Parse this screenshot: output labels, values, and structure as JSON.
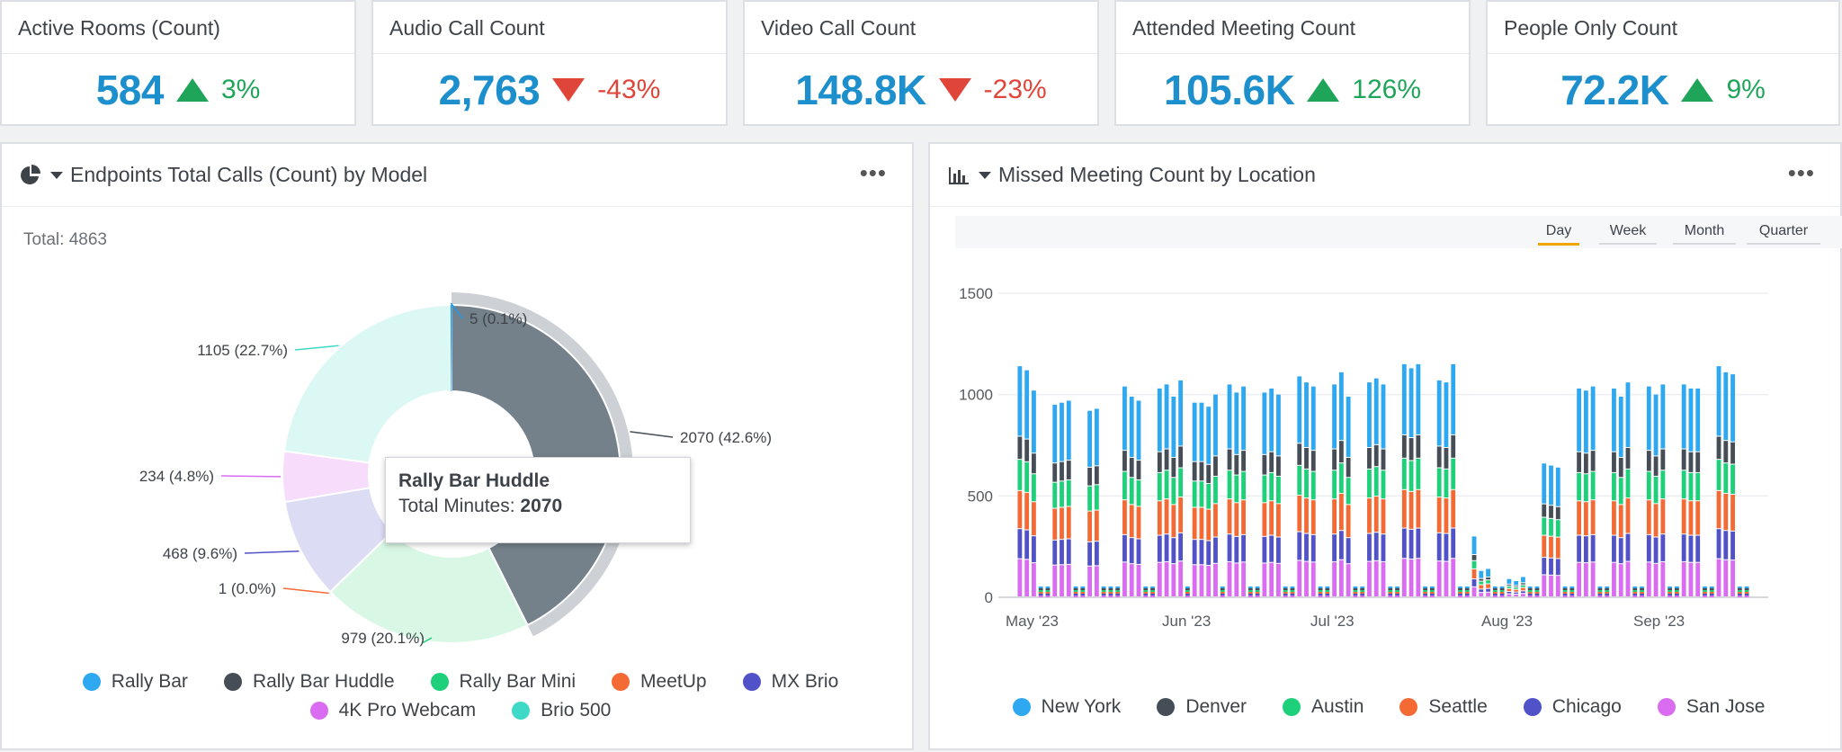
{
  "kpis": [
    {
      "title": "Active Rooms (Count)",
      "value": "584",
      "delta": "3%",
      "direction": "up"
    },
    {
      "title": "Audio Call Count",
      "value": "2,763",
      "delta": "-43%",
      "direction": "down"
    },
    {
      "title": "Video Call Count",
      "value": "148.8K",
      "delta": "-23%",
      "direction": "down"
    },
    {
      "title": "Attended Meeting Count",
      "value": "105.6K",
      "delta": "126%",
      "direction": "up"
    },
    {
      "title": "People Only Count",
      "value": "72.2K",
      "delta": "9%",
      "direction": "up"
    }
  ],
  "pie_panel": {
    "title": "Endpoints Total Calls (Count) by Model",
    "icon": "pie-chart-icon",
    "more": "•••",
    "total_label": "Total: 4863",
    "tooltip": {
      "title": "Rally Bar Huddle",
      "label": "Total Minutes: ",
      "value": "2070"
    }
  },
  "bar_panel": {
    "title": "Missed Meeting Count by Location",
    "icon": "bar-chart-icon",
    "more": "•••",
    "tabs": [
      "Day",
      "Week",
      "Month",
      "Quarter"
    ],
    "active_tab": "Day"
  },
  "chart_data": [
    {
      "type": "pie",
      "variant": "donut",
      "total": 4863,
      "slices": [
        {
          "name": "Rally Bar Huddle",
          "value": 2070,
          "label": "2070 (42.6%)",
          "color": "#74808a",
          "highlighted": true
        },
        {
          "name": "Rally Bar Mini",
          "value": 979,
          "label": "979 (20.1%)",
          "color": "#d9f7e5"
        },
        {
          "name": "MeetUp",
          "value": 1,
          "label": "1 (0.0%)",
          "color": "#fde2d6"
        },
        {
          "name": "MX Brio",
          "value": 468,
          "label": "468 (9.6%)",
          "color": "#dcdcf5"
        },
        {
          "name": "4K Pro Webcam",
          "value": 234,
          "label": "234 (4.8%)",
          "color": "#f8dcfb"
        },
        {
          "name": "Brio 500",
          "value": 1105,
          "label": "1105 (22.7%)",
          "color": "#dcf8f4"
        },
        {
          "name": "Rally Bar",
          "value": 5,
          "label": "5 (0.1%)",
          "color": "#1c9be6"
        }
      ],
      "legend": [
        {
          "name": "Rally Bar",
          "color": "#2ea8f0"
        },
        {
          "name": "Rally Bar Huddle",
          "color": "#454e56"
        },
        {
          "name": "Rally Bar Mini",
          "color": "#1ed07a"
        },
        {
          "name": "MeetUp",
          "color": "#f46a35"
        },
        {
          "name": "MX Brio",
          "color": "#5151c8"
        },
        {
          "name": "4K Pro Webcam",
          "color": "#da6cf2"
        },
        {
          "name": "Brio 500",
          "color": "#3fd9c7"
        }
      ]
    },
    {
      "type": "bar",
      "stacked": true,
      "xlabel": "",
      "ylabel": "",
      "ylim": [
        0,
        1500
      ],
      "yticks": [
        0,
        500,
        1000,
        1500
      ],
      "grid": true,
      "xticks": [
        "May '23",
        "Jun '23",
        "Jul '23",
        "Aug '23",
        "Sep '23"
      ],
      "x_range": [
        "2023-05-01",
        "2023-09-22"
      ],
      "series": [
        {
          "name": "San Jose",
          "color": "#da6cf2",
          "share": 0.165
        },
        {
          "name": "Chicago",
          "color": "#5151c8",
          "share": 0.13
        },
        {
          "name": "Seattle",
          "color": "#f46a35",
          "share": 0.165
        },
        {
          "name": "Austin",
          "color": "#1ed07a",
          "share": 0.135
        },
        {
          "name": "Denver",
          "color": "#454e56",
          "share": 0.1
        },
        {
          "name": "New York",
          "color": "#2ea8f0",
          "share": 0.305
        }
      ],
      "daily_totals": [
        1140,
        1120,
        1020,
        0,
        0,
        950,
        960,
        970,
        0,
        0,
        920,
        930,
        0,
        0,
        0,
        1040,
        990,
        970,
        0,
        0,
        1030,
        1050,
        990,
        1070,
        0,
        960,
        960,
        940,
        1000,
        0,
        1050,
        1010,
        1040,
        0,
        0,
        1010,
        1030,
        1000,
        0,
        0,
        1090,
        1060,
        1040,
        0,
        0,
        1050,
        1110,
        990,
        0,
        0,
        1060,
        1080,
        1050,
        0,
        0,
        1150,
        1130,
        1150,
        0,
        0,
        1070,
        1060,
        1150,
        0,
        0,
        300,
        130,
        140,
        0,
        0,
        90,
        80,
        100,
        0,
        0,
        660,
        650,
        640,
        0,
        0,
        1030,
        1020,
        1040,
        0,
        0,
        1030,
        990,
        1060,
        0,
        0,
        1040,
        1000,
        1050,
        0,
        0,
        1050,
        1030,
        1030,
        0,
        0,
        1140,
        1110,
        1100,
        0,
        0
      ],
      "legend": [
        {
          "name": "New York",
          "color": "#2ea8f0"
        },
        {
          "name": "Denver",
          "color": "#454e56"
        },
        {
          "name": "Austin",
          "color": "#1ed07a"
        },
        {
          "name": "Seattle",
          "color": "#f46a35"
        },
        {
          "name": "Chicago",
          "color": "#5151c8"
        },
        {
          "name": "San Jose",
          "color": "#da6cf2"
        }
      ]
    }
  ]
}
